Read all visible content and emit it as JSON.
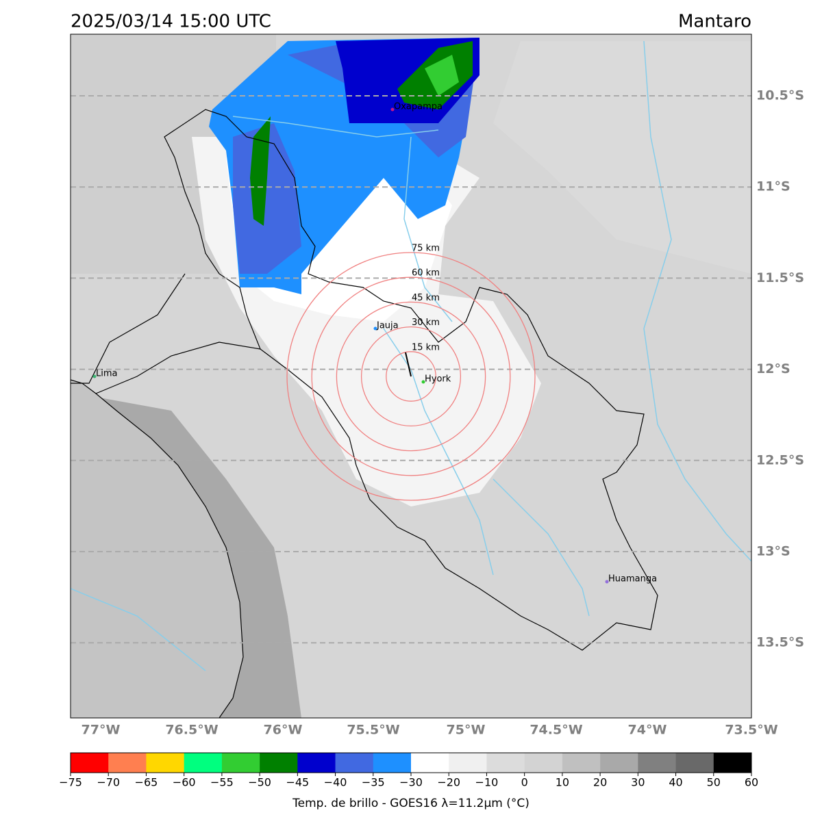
{
  "header": {
    "title": "2025/03/14 15:00 UTC",
    "region": "Mantaro"
  },
  "map": {
    "lat_labels": [
      "10.5°S",
      "11°S",
      "11.5°S",
      "12°S",
      "12.5°S",
      "13°S",
      "13.5°S"
    ],
    "lon_labels": [
      "77°W",
      "76.5°W",
      "76°W",
      "75.5°W",
      "75°W",
      "74.5°W",
      "74°W",
      "73.5°W"
    ],
    "places": [
      "Oxapampa",
      "Jauja",
      "Hyork",
      "Lima",
      "Huamanga"
    ],
    "ring_labels": [
      "15 km",
      "30 km",
      "45 km",
      "60 km",
      "75 km"
    ]
  },
  "colorbar": {
    "label": "Temp. de brillo - GOES16 λ=11.2μm (°C)",
    "colors": [
      "#ff0000",
      "#ff7f50",
      "#ffd700",
      "#00ff7f",
      "#32cd32",
      "#008000",
      "#0000cd",
      "#4169e1",
      "#1e90ff",
      "#ffffff",
      "#f0f0f0",
      "#dcdcdc",
      "#d3d3d3",
      "#c0c0c0",
      "#a9a9a9",
      "#808080",
      "#696969",
      "#000000"
    ],
    "ticks": [
      {
        "value": -75,
        "label": "−75"
      },
      {
        "value": -70,
        "label": "−70"
      },
      {
        "value": -65,
        "label": "−65"
      },
      {
        "value": -60,
        "label": "−60"
      },
      {
        "value": -55,
        "label": "−55"
      },
      {
        "value": -50,
        "label": "−50"
      },
      {
        "value": -45,
        "label": "−45"
      },
      {
        "value": -40,
        "label": "−40"
      },
      {
        "value": -35,
        "label": "−35"
      },
      {
        "value": -30,
        "label": "−30"
      },
      {
        "value": -20,
        "label": "−20"
      },
      {
        "value": -10,
        "label": "−10"
      },
      0,
      10,
      20,
      30,
      40,
      50,
      60
    ]
  }
}
